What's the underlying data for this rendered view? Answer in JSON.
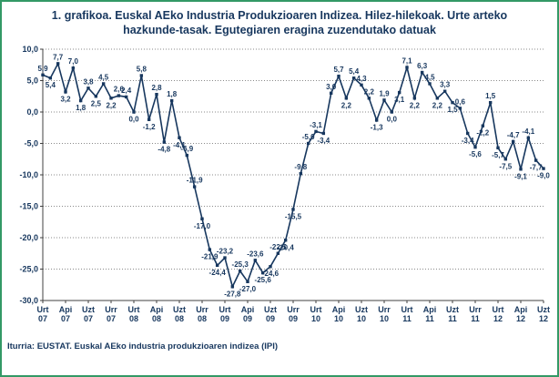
{
  "title": "1. grafikoa. Euskal AEko Industria Produkzioaren Indizea. Hilez-hilekoak. Urte arteko hazkunde-tasak. Egutegiaren eragina zuzendutako datuak",
  "source": "Iturria: EUSTAT. Euskal AEko industria produkzioaren indizea (IPI)",
  "chart_data": {
    "type": "line",
    "title": "Euskal AEko Industria Produkzioaren Indizea. Urte arteko hazkunde-tasak",
    "xlabel": "",
    "ylabel": "",
    "ylim": [
      -30,
      10
    ],
    "ytick_step": 5,
    "y_tick_labels": [
      "10,0",
      "5,0",
      "0,0",
      "-5,0",
      "-10,0",
      "-15,0",
      "-20,0",
      "-25,0",
      "-30,0"
    ],
    "grid": "dotted-horizontal",
    "legend": "none",
    "tick_every": 3,
    "x_tick_labels": [
      {
        "month": "Urt",
        "year": "07"
      },
      {
        "month": "Api",
        "year": "07"
      },
      {
        "month": "Uzt",
        "year": "07"
      },
      {
        "month": "Urr",
        "year": "07"
      },
      {
        "month": "Urt",
        "year": "08"
      },
      {
        "month": "Api",
        "year": "08"
      },
      {
        "month": "Uzt",
        "year": "08"
      },
      {
        "month": "Urr",
        "year": "08"
      },
      {
        "month": "Urt",
        "year": "09"
      },
      {
        "month": "Api",
        "year": "09"
      },
      {
        "month": "Uzt",
        "year": "09"
      },
      {
        "month": "Urr",
        "year": "09"
      },
      {
        "month": "Urt",
        "year": "10"
      },
      {
        "month": "Api",
        "year": "10"
      },
      {
        "month": "Uzt",
        "year": "10"
      },
      {
        "month": "Urr",
        "year": "10"
      },
      {
        "month": "Urt",
        "year": "11"
      },
      {
        "month": "Api",
        "year": "11"
      },
      {
        "month": "Uzt",
        "year": "11"
      },
      {
        "month": "Urr",
        "year": "11"
      },
      {
        "month": "Urt",
        "year": "12"
      },
      {
        "month": "Api",
        "year": "12"
      },
      {
        "month": "Uzt",
        "year": "12"
      }
    ],
    "values": [
      5.9,
      5.4,
      7.7,
      3.2,
      7.0,
      1.8,
      3.8,
      2.5,
      4.5,
      2.2,
      2.6,
      2.4,
      0.0,
      5.8,
      -1.2,
      2.8,
      -4.8,
      1.8,
      -4.1,
      -6.9,
      -11.9,
      -17.0,
      -21.9,
      -24.4,
      -23.2,
      -27.8,
      -25.3,
      -27.0,
      -23.6,
      -25.6,
      -24.6,
      -22.5,
      -20.4,
      -15.5,
      -9.8,
      -5.0,
      -3.1,
      -3.4,
      3.0,
      5.7,
      2.2,
      5.4,
      4.3,
      2.2,
      -1.3,
      1.9,
      0.0,
      3.1,
      7.1,
      2.2,
      6.3,
      4.5,
      2.2,
      3.3,
      1.5,
      0.6,
      -3.4,
      -5.6,
      -2.2,
      1.5,
      -5.7,
      -7.5,
      -4.7,
      -9.1,
      -4.1,
      -7.7,
      -9.0
    ],
    "colors": {
      "line": "#17375E",
      "text": "#17375E",
      "grid": "#8a8a8a",
      "axis": "#404040",
      "border": "#339966"
    }
  }
}
